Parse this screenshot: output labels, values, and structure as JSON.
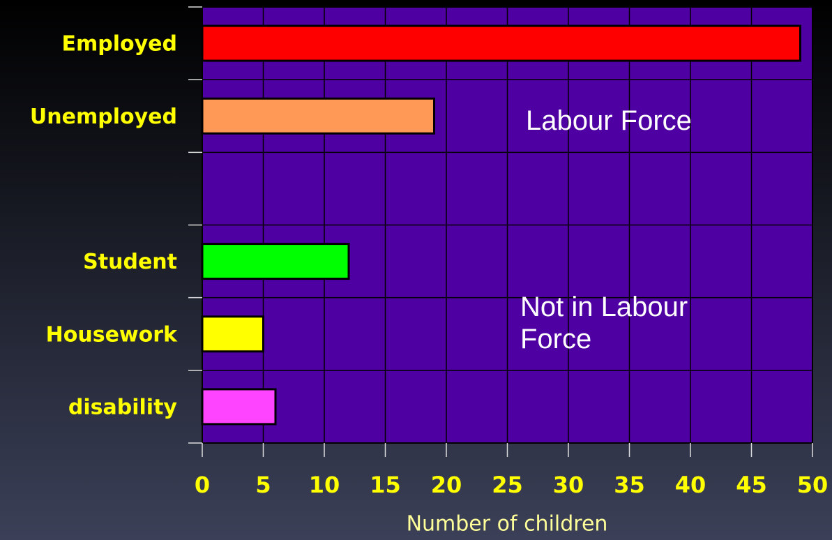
{
  "chart_data": {
    "type": "bar",
    "orientation": "horizontal",
    "categories": [
      "Employed",
      "Unemployed",
      null,
      "Student",
      "Housework",
      "disability"
    ],
    "values": [
      49,
      19,
      null,
      12,
      5,
      6
    ],
    "colors": [
      "#ff0000",
      "#ff9955",
      null,
      "#00ff00",
      "#ffff00",
      "#ff44ff"
    ],
    "xlim": [
      0,
      50
    ],
    "xticks": [
      0,
      5,
      10,
      15,
      20,
      25,
      30,
      35,
      40,
      45,
      50
    ],
    "xlabel": "Number of children",
    "grid": true,
    "annotations": [
      "Labour Force",
      "Not in Labour Force"
    ]
  }
}
